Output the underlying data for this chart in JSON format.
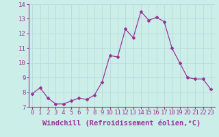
{
  "x": [
    0,
    1,
    2,
    3,
    4,
    5,
    6,
    7,
    8,
    9,
    10,
    11,
    12,
    13,
    14,
    15,
    16,
    17,
    18,
    19,
    20,
    21,
    22,
    23
  ],
  "y": [
    7.9,
    8.3,
    7.6,
    7.2,
    7.2,
    7.4,
    7.6,
    7.5,
    7.8,
    8.7,
    10.5,
    10.4,
    12.3,
    11.7,
    13.5,
    12.9,
    13.1,
    12.8,
    11.0,
    10.0,
    9.0,
    8.9,
    8.9,
    8.2
  ],
  "line_color": "#993399",
  "marker": "D",
  "marker_size": 2,
  "bg_color": "#cceee8",
  "grid_color": "#bbdddd",
  "xlabel": "Windchill (Refroidissement éolien,°C)",
  "xlabel_fontsize": 7.5,
  "tick_fontsize": 6.5,
  "ylim": [
    7,
    14
  ],
  "xlim": [
    -0.5,
    23.5
  ],
  "yticks": [
    7,
    8,
    9,
    10,
    11,
    12,
    13,
    14
  ],
  "xticks": [
    0,
    1,
    2,
    3,
    4,
    5,
    6,
    7,
    8,
    9,
    10,
    11,
    12,
    13,
    14,
    15,
    16,
    17,
    18,
    19,
    20,
    21,
    22,
    23
  ],
  "spine_color": "#993399",
  "tick_color": "#993399",
  "label_color": "#993399"
}
